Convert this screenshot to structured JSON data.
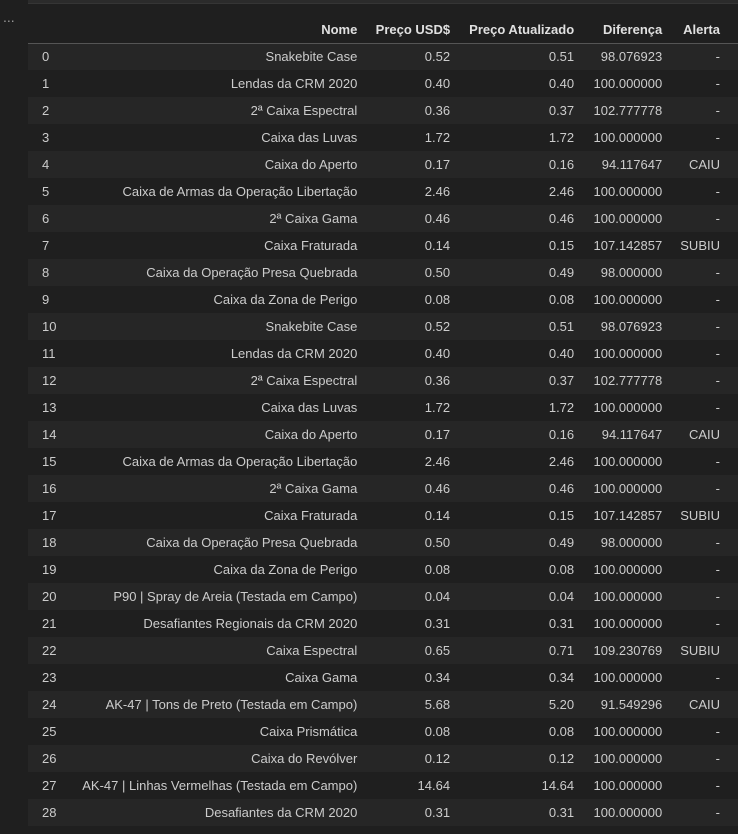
{
  "ui": {
    "ellipsis": "..."
  },
  "table": {
    "headers": {
      "index": "",
      "nome": "Nome",
      "preco": "Preço USD$",
      "atualizado": "Preço Atualizado",
      "diferenca": "Diferença",
      "alerta": "Alerta"
    },
    "rows": [
      {
        "idx": "0",
        "nome": "Snakebite Case",
        "preco": "0.52",
        "atualizado": "0.51",
        "diferenca": "98.076923",
        "alerta": "-"
      },
      {
        "idx": "1",
        "nome": "Lendas da CRM 2020",
        "preco": "0.40",
        "atualizado": "0.40",
        "diferenca": "100.000000",
        "alerta": "-"
      },
      {
        "idx": "2",
        "nome": "2ª Caixa Espectral",
        "preco": "0.36",
        "atualizado": "0.37",
        "diferenca": "102.777778",
        "alerta": "-"
      },
      {
        "idx": "3",
        "nome": "Caixa das Luvas",
        "preco": "1.72",
        "atualizado": "1.72",
        "diferenca": "100.000000",
        "alerta": "-"
      },
      {
        "idx": "4",
        "nome": "Caixa do Aperto",
        "preco": "0.17",
        "atualizado": "0.16",
        "diferenca": "94.117647",
        "alerta": "CAIU"
      },
      {
        "idx": "5",
        "nome": "Caixa de Armas da Operação Libertação",
        "preco": "2.46",
        "atualizado": "2.46",
        "diferenca": "100.000000",
        "alerta": "-"
      },
      {
        "idx": "6",
        "nome": "2ª Caixa Gama",
        "preco": "0.46",
        "atualizado": "0.46",
        "diferenca": "100.000000",
        "alerta": "-"
      },
      {
        "idx": "7",
        "nome": "Caixa Fraturada",
        "preco": "0.14",
        "atualizado": "0.15",
        "diferenca": "107.142857",
        "alerta": "SUBIU"
      },
      {
        "idx": "8",
        "nome": "Caixa da Operação Presa Quebrada",
        "preco": "0.50",
        "atualizado": "0.49",
        "diferenca": "98.000000",
        "alerta": "-"
      },
      {
        "idx": "9",
        "nome": "Caixa da Zona de Perigo",
        "preco": "0.08",
        "atualizado": "0.08",
        "diferenca": "100.000000",
        "alerta": "-"
      },
      {
        "idx": "10",
        "nome": "Snakebite Case",
        "preco": "0.52",
        "atualizado": "0.51",
        "diferenca": "98.076923",
        "alerta": "-"
      },
      {
        "idx": "11",
        "nome": "Lendas da CRM 2020",
        "preco": "0.40",
        "atualizado": "0.40",
        "diferenca": "100.000000",
        "alerta": "-"
      },
      {
        "idx": "12",
        "nome": "2ª Caixa Espectral",
        "preco": "0.36",
        "atualizado": "0.37",
        "diferenca": "102.777778",
        "alerta": "-"
      },
      {
        "idx": "13",
        "nome": "Caixa das Luvas",
        "preco": "1.72",
        "atualizado": "1.72",
        "diferenca": "100.000000",
        "alerta": "-"
      },
      {
        "idx": "14",
        "nome": "Caixa do Aperto",
        "preco": "0.17",
        "atualizado": "0.16",
        "diferenca": "94.117647",
        "alerta": "CAIU"
      },
      {
        "idx": "15",
        "nome": "Caixa de Armas da Operação Libertação",
        "preco": "2.46",
        "atualizado": "2.46",
        "diferenca": "100.000000",
        "alerta": "-"
      },
      {
        "idx": "16",
        "nome": "2ª Caixa Gama",
        "preco": "0.46",
        "atualizado": "0.46",
        "diferenca": "100.000000",
        "alerta": "-"
      },
      {
        "idx": "17",
        "nome": "Caixa Fraturada",
        "preco": "0.14",
        "atualizado": "0.15",
        "diferenca": "107.142857",
        "alerta": "SUBIU"
      },
      {
        "idx": "18",
        "nome": "Caixa da Operação Presa Quebrada",
        "preco": "0.50",
        "atualizado": "0.49",
        "diferenca": "98.000000",
        "alerta": "-"
      },
      {
        "idx": "19",
        "nome": "Caixa da Zona de Perigo",
        "preco": "0.08",
        "atualizado": "0.08",
        "diferenca": "100.000000",
        "alerta": "-"
      },
      {
        "idx": "20",
        "nome": "P90 | Spray de Areia (Testada em Campo)",
        "preco": "0.04",
        "atualizado": "0.04",
        "diferenca": "100.000000",
        "alerta": "-"
      },
      {
        "idx": "21",
        "nome": "Desafiantes Regionais da CRM 2020",
        "preco": "0.31",
        "atualizado": "0.31",
        "diferenca": "100.000000",
        "alerta": "-"
      },
      {
        "idx": "22",
        "nome": "Caixa Espectral",
        "preco": "0.65",
        "atualizado": "0.71",
        "diferenca": "109.230769",
        "alerta": "SUBIU"
      },
      {
        "idx": "23",
        "nome": "Caixa Gama",
        "preco": "0.34",
        "atualizado": "0.34",
        "diferenca": "100.000000",
        "alerta": "-"
      },
      {
        "idx": "24",
        "nome": "AK-47 | Tons de Preto (Testada em Campo)",
        "preco": "5.68",
        "atualizado": "5.20",
        "diferenca": "91.549296",
        "alerta": "CAIU"
      },
      {
        "idx": "25",
        "nome": "Caixa Prismática",
        "preco": "0.08",
        "atualizado": "0.08",
        "diferenca": "100.000000",
        "alerta": "-"
      },
      {
        "idx": "26",
        "nome": "Caixa do Revólver",
        "preco": "0.12",
        "atualizado": "0.12",
        "diferenca": "100.000000",
        "alerta": "-"
      },
      {
        "idx": "27",
        "nome": "AK-47 | Linhas Vermelhas (Testada em Campo)",
        "preco": "14.64",
        "atualizado": "14.64",
        "diferenca": "100.000000",
        "alerta": "-"
      },
      {
        "idx": "28",
        "nome": "Desafiantes da CRM 2020",
        "preco": "0.31",
        "atualizado": "0.31",
        "diferenca": "100.000000",
        "alerta": "-"
      }
    ]
  }
}
